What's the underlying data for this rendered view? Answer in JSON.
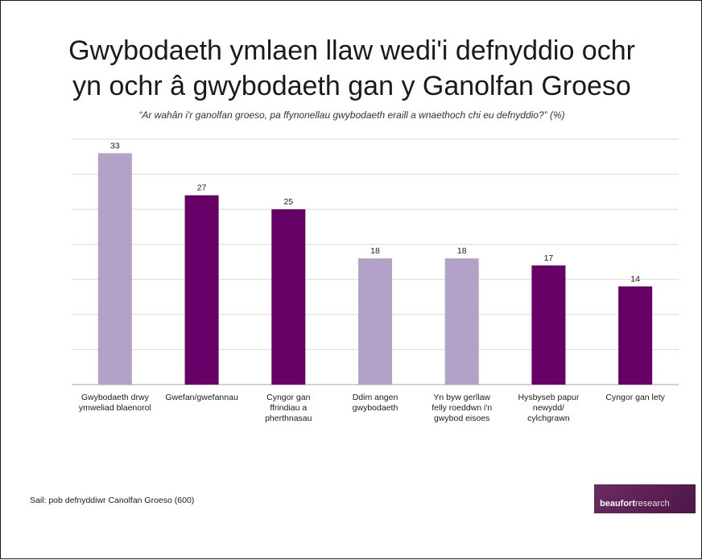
{
  "title_line1": "Gwybodaeth ymlaen llaw wedi'i defnyddio ochr",
  "title_line2": "yn ochr â gwybodaeth gan y Ganolfan Groeso",
  "subtitle": "“Ar wahân i'r ganolfan groeso, pa ffynonellau gwybodaeth eraill a wnaethoch chi eu defnyddio?” (%)",
  "source": "Sail: pob defnyddiwr Canolfan Groeso (600)",
  "logo": {
    "bold": "beaufort",
    "regular": "research"
  },
  "colors": {
    "light": "#b3a2c8",
    "dark": "#660066",
    "grid": "#d9d9d9"
  },
  "chart_data": {
    "type": "bar",
    "title": "Gwybodaeth ymlaen llaw wedi'i defnyddio ochr yn ochr â gwybodaeth gan y Ganolfan Groeso",
    "subtitle": "“Ar wahân i'r ganolfan groeso, pa ffynonellau gwybodaeth eraill a wnaethoch chi eu defnyddio?” (%)",
    "categories": [
      [
        "Gwybodaeth drwy",
        "ymweliad blaenorol"
      ],
      [
        "Gwefan/gwefannau"
      ],
      [
        "Cyngor gan",
        "ffrindiau a",
        "pherthnasau"
      ],
      [
        "Ddim angen",
        "gwybodaeth"
      ],
      [
        "Yn byw gerllaw",
        "felly roeddwn i'n",
        "gwybod eisoes"
      ],
      [
        "Hysbyseb papur",
        "newydd/",
        "cylchgrawn"
      ],
      [
        "Cyngor gan lety"
      ]
    ],
    "values": [
      33,
      27,
      25,
      18,
      18,
      17,
      14
    ],
    "bar_colors": [
      "#b3a2c8",
      "#660066",
      "#660066",
      "#b3a2c8",
      "#b3a2c8",
      "#660066",
      "#660066"
    ],
    "ylim": [
      0,
      35
    ],
    "grid": true,
    "data_labels": true,
    "legend": "none"
  }
}
